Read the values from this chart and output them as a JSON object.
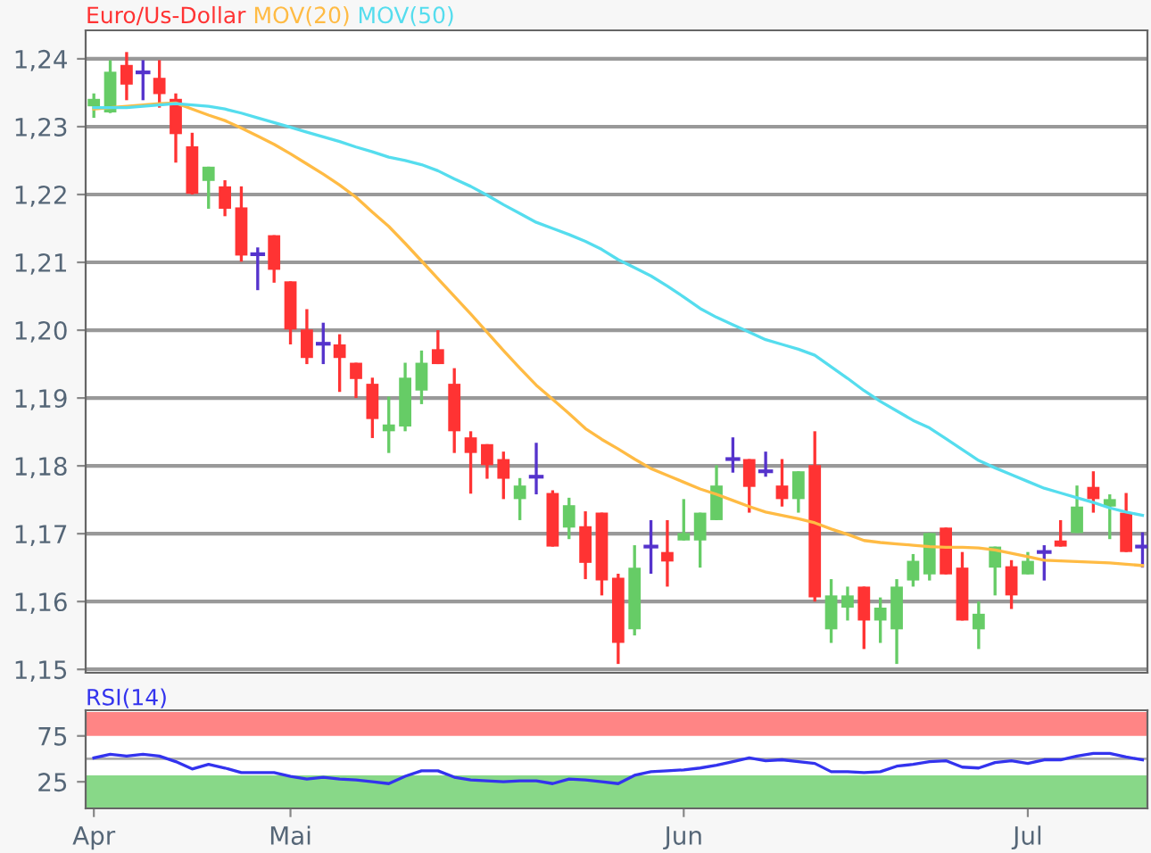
{
  "chart_data": [
    {
      "type": "candlestick",
      "title": "Euro/Us-Dollar",
      "ohlc": [
        [
          1.233,
          1.2349,
          1.2313,
          1.2341
        ],
        [
          1.2321,
          1.2398,
          1.232,
          1.2381
        ],
        [
          1.2391,
          1.241,
          1.2339,
          1.2362
        ],
        [
          1.238,
          1.2398,
          1.2339,
          1.238
        ],
        [
          1.2372,
          1.2398,
          1.2328,
          1.2348
        ],
        [
          1.2341,
          1.2349,
          1.2247,
          1.2289
        ],
        [
          1.2271,
          1.2291,
          1.22,
          1.2201
        ],
        [
          1.222,
          1.2241,
          1.2179,
          1.2241
        ],
        [
          1.2212,
          1.2221,
          1.2168,
          1.2179
        ],
        [
          1.2181,
          1.2212,
          1.2101,
          1.211
        ],
        [
          1.2112,
          1.2122,
          1.2059,
          1.2112
        ],
        [
          1.214,
          1.214,
          1.207,
          1.2089
        ],
        [
          1.2072,
          1.2072,
          1.1979,
          1.2001
        ],
        [
          1.2001,
          1.2031,
          1.195,
          1.1959
        ],
        [
          1.198,
          1.2011,
          1.195,
          1.198
        ],
        [
          1.1979,
          1.1994,
          1.1909,
          1.1959
        ],
        [
          1.1952,
          1.1952,
          1.19,
          1.1928
        ],
        [
          1.1921,
          1.193,
          1.1841,
          1.1869
        ],
        [
          1.1851,
          1.1902,
          1.1819,
          1.1861
        ],
        [
          1.1858,
          1.1952,
          1.1851,
          1.193
        ],
        [
          1.1911,
          1.197,
          1.1891,
          1.1952
        ],
        [
          1.1972,
          1.2,
          1.195,
          1.195
        ],
        [
          1.1921,
          1.1944,
          1.1819,
          1.1851
        ],
        [
          1.1842,
          1.1851,
          1.1759,
          1.1819
        ],
        [
          1.1832,
          1.1832,
          1.1781,
          1.1801
        ],
        [
          1.181,
          1.1821,
          1.1751,
          1.1781
        ],
        [
          1.1751,
          1.1782,
          1.172,
          1.1771
        ],
        [
          1.1784,
          1.1834,
          1.1758,
          1.1784
        ],
        [
          1.176,
          1.1764,
          1.1681,
          1.1681
        ],
        [
          1.1709,
          1.1753,
          1.1692,
          1.1742
        ],
        [
          1.1711,
          1.1733,
          1.1633,
          1.1657
        ],
        [
          1.1731,
          1.1731,
          1.1609,
          1.1631
        ],
        [
          1.1635,
          1.1641,
          1.1508,
          1.1539
        ],
        [
          1.1559,
          1.1683,
          1.155,
          1.165
        ],
        [
          1.1681,
          1.172,
          1.1641,
          1.1681
        ],
        [
          1.1673,
          1.172,
          1.1622,
          1.1659
        ],
        [
          1.169,
          1.1751,
          1.169,
          1.1701
        ],
        [
          1.169,
          1.1731,
          1.165,
          1.1731
        ],
        [
          1.172,
          1.1801,
          1.172,
          1.1771
        ],
        [
          1.181,
          1.1842,
          1.179,
          1.181
        ],
        [
          1.181,
          1.181,
          1.1731,
          1.1769
        ],
        [
          1.1792,
          1.1821,
          1.1784,
          1.1792
        ],
        [
          1.1771,
          1.181,
          1.174,
          1.1751
        ],
        [
          1.1751,
          1.1792,
          1.1731,
          1.1792
        ],
        [
          1.1801,
          1.1851,
          1.16,
          1.1606
        ],
        [
          1.1559,
          1.1633,
          1.1539,
          1.1609
        ],
        [
          1.1591,
          1.1622,
          1.1572,
          1.1609
        ],
        [
          1.1622,
          1.1622,
          1.153,
          1.1572
        ],
        [
          1.1572,
          1.1606,
          1.1539,
          1.1591
        ],
        [
          1.1559,
          1.1633,
          1.1508,
          1.1622
        ],
        [
          1.1631,
          1.167,
          1.1622,
          1.166
        ],
        [
          1.164,
          1.1701,
          1.1631,
          1.1701
        ],
        [
          1.1709,
          1.1709,
          1.164,
          1.164
        ],
        [
          1.165,
          1.1673,
          1.1572,
          1.1572
        ],
        [
          1.1559,
          1.16,
          1.153,
          1.1582
        ],
        [
          1.165,
          1.1681,
          1.1609,
          1.1681
        ],
        [
          1.1652,
          1.1661,
          1.1589,
          1.1609
        ],
        [
          1.164,
          1.1673,
          1.164,
          1.166
        ],
        [
          1.1673,
          1.1683,
          1.1631,
          1.1673
        ],
        [
          1.169,
          1.172,
          1.1681,
          1.1681
        ],
        [
          1.1701,
          1.1771,
          1.1701,
          1.174
        ],
        [
          1.1769,
          1.1792,
          1.1731,
          1.1751
        ],
        [
          1.174,
          1.1758,
          1.1692,
          1.1751
        ],
        [
          1.1731,
          1.176,
          1.1673,
          1.1673
        ],
        [
          1.1681,
          1.1702,
          1.165,
          1.1681
        ]
      ],
      "series": [
        {
          "name": "MOV(20)",
          "type": "line",
          "color": "#ffbb44",
          "values": [
            1.2326,
            1.2328,
            1.233,
            1.2332,
            1.2334,
            1.2335,
            1.2326,
            1.2317,
            1.2309,
            1.2298,
            1.2286,
            1.2274,
            1.226,
            1.2245,
            1.223,
            1.2214,
            1.2196,
            1.2174,
            1.2153,
            1.2128,
            1.2102,
            1.2076,
            1.205,
            1.2024,
            1.1997,
            1.197,
            1.1944,
            1.1919,
            1.1898,
            1.1877,
            1.1855,
            1.1839,
            1.1825,
            1.181,
            1.1796,
            1.1786,
            1.1776,
            1.1766,
            1.1758,
            1.1749,
            1.174,
            1.1732,
            1.1727,
            1.1722,
            1.1716,
            1.1707,
            1.1699,
            1.169,
            1.1687,
            1.1685,
            1.1683,
            1.1681,
            1.168,
            1.168,
            1.1679,
            1.1676,
            1.1671,
            1.1666,
            1.1661,
            1.166,
            1.1659,
            1.1658,
            1.1657,
            1.1655,
            1.1653
          ]
        },
        {
          "name": "MOV(50)",
          "type": "line",
          "color": "#55ddee",
          "values": [
            1.2328,
            1.2328,
            1.2328,
            1.233,
            1.2332,
            1.2334,
            1.2332,
            1.233,
            1.2326,
            1.232,
            1.2313,
            1.2306,
            1.2299,
            1.2292,
            1.2285,
            1.2278,
            1.227,
            1.2263,
            1.2255,
            1.225,
            1.2244,
            1.2235,
            1.2223,
            1.2212,
            1.2199,
            1.2185,
            1.2172,
            1.2159,
            1.215,
            1.2141,
            1.2131,
            1.2119,
            1.2104,
            1.2092,
            1.208,
            1.2065,
            1.2049,
            1.2032,
            1.2019,
            1.2008,
            1.1997,
            1.1986,
            1.1979,
            1.1972,
            1.1963,
            1.1946,
            1.1929,
            1.1911,
            1.1895,
            1.1881,
            1.1867,
            1.1856,
            1.184,
            1.1824,
            1.1808,
            1.1797,
            1.1787,
            1.1777,
            1.1767,
            1.176,
            1.1753,
            1.1746,
            1.1738,
            1.1732,
            1.1727
          ]
        }
      ],
      "ylim": [
        1.1495,
        1.2442
      ],
      "yticks": [
        {
          "value": 1.15,
          "label": "1,15"
        },
        {
          "value": 1.16,
          "label": "1,16"
        },
        {
          "value": 1.17,
          "label": "1,17"
        },
        {
          "value": 1.18,
          "label": "1,18"
        },
        {
          "value": 1.19,
          "label": "1,19"
        },
        {
          "value": 1.2,
          "label": "1,20"
        },
        {
          "value": 1.21,
          "label": "1,21"
        },
        {
          "value": 1.22,
          "label": "1,22"
        },
        {
          "value": 1.23,
          "label": "1,23"
        },
        {
          "value": 1.24,
          "label": "1,24"
        }
      ],
      "grid": "y"
    },
    {
      "type": "line",
      "title": "RSI(14)",
      "categories": [
        "Apr",
        null,
        null,
        null,
        null,
        null,
        null,
        null,
        null,
        null,
        null,
        null,
        "Mai",
        null,
        null,
        null,
        null,
        null,
        null,
        null,
        null,
        null,
        null,
        null,
        null,
        null,
        null,
        null,
        null,
        null,
        null,
        null,
        null,
        null,
        null,
        null,
        "Jun",
        null,
        null,
        null,
        null,
        null,
        null,
        null,
        null,
        null,
        null,
        null,
        null,
        null,
        null,
        null,
        null,
        null,
        null,
        null,
        null,
        "Jul",
        null,
        null,
        null,
        null,
        null,
        null,
        null
      ],
      "series": [
        {
          "color": "#3333ee",
          "values": [
            51,
            55,
            53,
            55,
            53,
            47,
            39,
            44,
            40,
            35,
            35,
            35,
            31,
            28,
            30,
            28,
            27,
            25,
            23,
            31,
            37,
            37,
            30,
            27,
            26,
            25,
            26,
            26,
            23,
            28,
            27,
            25,
            23,
            32,
            36,
            37,
            38,
            40,
            43,
            47,
            51,
            48,
            49,
            47,
            45,
            36,
            36,
            35,
            36,
            42,
            44,
            47,
            48,
            41,
            40,
            46,
            48,
            45,
            49,
            49,
            53,
            56,
            56,
            52,
            49
          ]
        }
      ],
      "ylim": [
        -4,
        103
      ],
      "yticks": [
        25,
        75
      ],
      "bands": [
        {
          "axis": "y",
          "from": 75,
          "to": 101,
          "color": "#ff8585"
        },
        {
          "axis": "y",
          "from": -4,
          "to": 32,
          "color": "#88d888"
        }
      ],
      "ref_lines": [
        {
          "axis": "y",
          "value": 50,
          "color": "#aaaaaa"
        }
      ],
      "grid": false
    }
  ]
}
